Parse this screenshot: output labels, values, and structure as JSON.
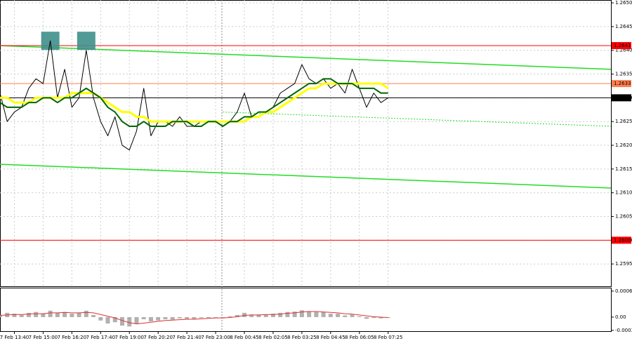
{
  "chart_data": [
    {
      "type": "line",
      "categories": [
        null,
        null,
        "7 Feb 13:40",
        null,
        null,
        null,
        "7 Feb 15:00",
        null,
        null,
        null,
        "7 Feb 16:20",
        null,
        null,
        null,
        "7 Feb 17:40",
        null,
        null,
        null,
        "7 Feb 19:00",
        null,
        null,
        null,
        "7 Feb 20:20",
        null,
        null,
        null,
        "7 Feb 21:40",
        null,
        null,
        null,
        "7 Feb 23:00",
        null,
        null,
        null,
        "8 Feb 00:45",
        null,
        null,
        null,
        "8 Feb 02:05",
        null,
        null,
        null,
        "8 Feb 03:25",
        null,
        null,
        null,
        "8 Feb 04:45",
        null,
        null,
        null,
        "8 Feb 06:05",
        null,
        null,
        null,
        "8 Feb 07:25",
        null
      ],
      "series": [
        {
          "color": "#000000",
          "width": 1,
          "values": [
            1.2631,
            1.2625,
            1.2627,
            1.2628,
            1.2632,
            1.2634,
            1.2633,
            1.2642,
            1.263,
            1.2636,
            1.2628,
            1.263,
            1.264,
            1.263,
            1.2625,
            1.2622,
            1.2626,
            1.262,
            1.2619,
            1.2623,
            1.2632,
            1.2622,
            1.2625,
            1.2625,
            1.2624,
            1.2626,
            1.2624,
            1.2624,
            1.2625,
            1.2625,
            1.2625,
            1.2624,
            1.2625,
            1.2627,
            1.2631,
            1.2626,
            1.2626,
            1.2627,
            1.2628,
            1.2631,
            1.2632,
            1.2633,
            1.2637,
            1.2634,
            1.2633,
            1.2634,
            1.2632,
            1.2633,
            1.2631,
            1.2636,
            1.2632,
            1.2628,
            1.2631,
            1.2629,
            1.263,
            null
          ]
        },
        {
          "color": "#ffff00",
          "width": 3,
          "values": [
            1.263,
            1.263,
            1.2629,
            1.2629,
            1.2629,
            1.263,
            1.263,
            1.263,
            1.263,
            1.263,
            1.2631,
            1.2631,
            1.2631,
            1.2631,
            1.263,
            1.2629,
            1.2628,
            1.2627,
            1.2627,
            1.2626,
            1.2626,
            1.2625,
            1.2625,
            1.2625,
            1.2625,
            1.2625,
            1.2625,
            1.2625,
            1.2625,
            1.2625,
            1.2625,
            1.2625,
            1.2625,
            1.2625,
            1.2625,
            1.2626,
            1.2626,
            1.2627,
            1.2627,
            1.2628,
            1.2629,
            1.263,
            1.2631,
            1.2632,
            1.2632,
            1.2633,
            1.2633,
            1.2633,
            1.2633,
            1.2633,
            1.2633,
            1.2633,
            1.2633,
            1.2633,
            1.2632,
            null
          ]
        },
        {
          "color": "#006600",
          "width": 2,
          "values": [
            1.2629,
            1.2628,
            1.2628,
            1.2628,
            1.2629,
            1.2629,
            1.263,
            1.263,
            1.2629,
            1.263,
            1.263,
            1.2631,
            1.2632,
            1.2631,
            1.263,
            1.2628,
            1.2627,
            1.2625,
            1.2624,
            1.2624,
            1.2625,
            1.2624,
            1.2624,
            1.2624,
            1.2625,
            1.2625,
            1.2625,
            1.2624,
            1.2624,
            1.2625,
            1.2625,
            1.2624,
            1.2625,
            1.2625,
            1.2626,
            1.2626,
            1.2627,
            1.2627,
            1.2628,
            1.2629,
            1.263,
            1.2631,
            1.2632,
            1.2633,
            1.2633,
            1.2634,
            1.2634,
            1.2633,
            1.2633,
            1.2633,
            1.2632,
            1.2632,
            1.2632,
            1.2631,
            1.2631,
            null
          ]
        }
      ],
      "ylim": [
        1.25903,
        1.26506
      ],
      "yticks": [
        {
          "value": 1.265,
          "label": "1.2650"
        },
        {
          "value": 1.2645,
          "label": "1.2645"
        },
        {
          "value": 1.264,
          "label": "1.2640"
        },
        {
          "value": 1.2635,
          "label": "1.2635"
        },
        {
          "value": 1.263,
          "label": "1.2630"
        },
        {
          "value": 1.2625,
          "label": "1.2625"
        },
        {
          "value": 1.262,
          "label": "1.2620"
        },
        {
          "value": 1.2615,
          "label": "1.2615"
        },
        {
          "value": 1.261,
          "label": "1.2610"
        },
        {
          "value": 1.2605,
          "label": "1.2605"
        },
        {
          "value": 1.26,
          "label": "1.2600"
        },
        {
          "value": 1.2595,
          "label": "1.2595"
        }
      ],
      "grid": true,
      "levels": [
        {
          "value": 1.2641,
          "label": "1.2641",
          "color": "#ff0000"
        },
        {
          "value": 1.2633,
          "label": "1.2633",
          "color": "#ff7f50"
        },
        {
          "value": 1.263,
          "label": "1.2630",
          "color": "#000000"
        },
        {
          "value": 1.26,
          "label": "1.2600",
          "color": "#ff0000"
        }
      ],
      "trendlines": [
        {
          "x": [
            0,
            85
          ],
          "values": [
            1.2641,
            1.2636
          ],
          "color": "#22dd22",
          "dash": false
        },
        {
          "x": [
            0,
            85
          ],
          "values": [
            1.2616,
            1.2611
          ],
          "color": "#22dd22",
          "dash": false
        },
        {
          "x": [
            31,
            85
          ],
          "values": [
            1.2627,
            1.2624
          ],
          "color": "#22dd22",
          "dash": true
        }
      ],
      "signals": [
        {
          "x": 7,
          "value": 1.2642
        },
        {
          "x": 12,
          "value": 1.2642
        }
      ]
    },
    {
      "type": "macd",
      "series": [
        {
          "color": "#b0b0b0",
          "style": "bar",
          "values": [
            5e-05,
            0.0001,
            8e-05,
            5e-05,
            0.0001,
            0.00012,
            8e-05,
            0.00015,
            0.0001,
            0.00012,
            8e-05,
            0.0001,
            0.00015,
            5e-05,
            -8e-05,
            -0.00015,
            -0.00012,
            -0.0002,
            -0.00022,
            -0.00015,
            -5e-05,
            -0.0001,
            -8e-05,
            -5e-05,
            -6e-05,
            -3e-05,
            -4e-05,
            -4e-05,
            -2e-05,
            -2e-05,
            -1e-05,
            -2e-05,
            2e-05,
            5e-05,
            0.0001,
            6e-05,
            6e-05,
            6e-05,
            8e-05,
            0.0001,
            0.00012,
            0.00013,
            0.00016,
            0.00014,
            0.00012,
            0.00012,
            8e-05,
            8e-05,
            4e-05,
            6e-05,
            2e-05,
            -4e-05,
            -2e-05,
            -3e-05,
            -2e-05,
            null
          ]
        },
        {
          "color": "#e03030",
          "style": "line",
          "values": [
            4e-05,
            5e-05,
            6e-05,
            6e-05,
            7e-05,
            8e-05,
            8e-05,
            0.0001,
            0.0001,
            0.00011,
            0.0001,
            0.0001,
            0.00011,
            0.0001,
            6e-05,
            2e-05,
            -2e-05,
            -8e-05,
            -0.00013,
            -0.00016,
            -0.00014,
            -0.00012,
            -0.0001,
            -8e-05,
            -7e-05,
            -6e-05,
            -5e-05,
            -5e-05,
            -4e-05,
            -3e-05,
            -2e-05,
            -2e-05,
            -1e-05,
            1e-05,
            4e-05,
            5e-05,
            5e-05,
            6e-05,
            6e-05,
            7e-05,
            9e-05,
            0.0001,
            0.00012,
            0.00013,
            0.00013,
            0.00012,
            0.00011,
            0.0001,
            8e-05,
            7e-05,
            5e-05,
            3e-05,
            1e-05,
            0,
            -1e-05,
            null
          ]
        }
      ],
      "ylim": [
        -0.00033,
        0.00069
      ],
      "yticks": [
        0.00061,
        {
          "value": 0,
          "label": "0.00"
        },
        -0.00031
      ]
    }
  ]
}
